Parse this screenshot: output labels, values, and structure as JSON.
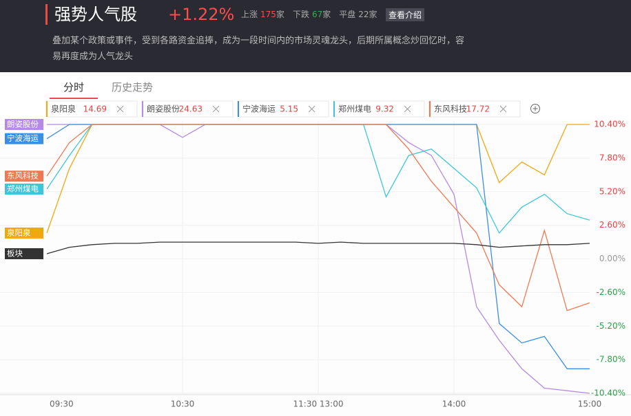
{
  "header": {
    "title": "强势人气股",
    "change": "+1.22%",
    "stats": [
      {
        "label": "上涨",
        "count": "175",
        "unit": "家"
      },
      {
        "label": "下跌",
        "count": "67",
        "unit": "家"
      },
      {
        "label": "平盘",
        "count": "22",
        "unit": "家"
      }
    ],
    "button": "查看介绍",
    "description": "叠加某个政策或事件，受到各路资金追捧，成为一段时间内的市场灵魂龙头，后期所属概念炒回忆时，容易再度成为人气龙头"
  },
  "tabs": [
    "分时",
    "历史走势"
  ],
  "chart_data": {
    "type": "line",
    "x": [
      0,
      10,
      20,
      30,
      40,
      50,
      60,
      70,
      80,
      90,
      100,
      110,
      120,
      130,
      140,
      150,
      160,
      170,
      180,
      190,
      200,
      210,
      220,
      230,
      240
    ],
    "xlim": [
      0,
      240
    ],
    "xticks": [
      {
        "value": 0,
        "label": "09:30"
      },
      {
        "value": 60,
        "label": "10:30"
      },
      {
        "value": 120,
        "label": "11:30 13:00"
      },
      {
        "value": 180,
        "label": "14:00"
      },
      {
        "value": 240,
        "label": "15:00"
      }
    ],
    "ylim": [
      -10.4,
      10.4
    ],
    "yticks": [
      {
        "value": 10.4,
        "label": "10.40%"
      },
      {
        "value": 7.8,
        "label": "7.80%"
      },
      {
        "value": 5.2,
        "label": "5.20%"
      },
      {
        "value": 2.6,
        "label": "2.60%"
      },
      {
        "value": 0,
        "label": "0.00%"
      },
      {
        "value": -2.6,
        "label": "-2.60%"
      },
      {
        "value": -5.2,
        "label": "-5.20%"
      },
      {
        "value": -7.8,
        "label": "-7.80%"
      },
      {
        "value": -10.4,
        "label": "-10.40%"
      }
    ],
    "grid": true,
    "series": [
      {
        "name": "泉阳泉",
        "price": "14.69",
        "color": "#f0a810",
        "values": [
          2,
          7,
          10.4,
          10.4,
          10.4,
          10.4,
          10.4,
          10.4,
          10.4,
          10.4,
          10.4,
          10.4,
          10.4,
          10.4,
          10.4,
          10.4,
          10.4,
          10.4,
          10.4,
          10.4,
          5.9,
          7.5,
          6.5,
          10.4,
          10.4
        ]
      },
      {
        "name": "朗姿股份",
        "price": "24.63",
        "color": "#b48ae6",
        "values": [
          10.4,
          10.4,
          10.4,
          10.4,
          10.4,
          10.4,
          9.4,
          10.4,
          10.4,
          10.4,
          10.4,
          10.4,
          10.4,
          10.4,
          10.4,
          10.4,
          9,
          8,
          5,
          -3.7,
          -6.3,
          -8.5,
          -10,
          -10.2,
          -10.4
        ]
      },
      {
        "name": "宁波海运",
        "price": "5.15",
        "color": "#3a8ee6",
        "values": [
          9.3,
          10.4,
          10.4,
          10.4,
          10.4,
          10.4,
          10.4,
          10.4,
          10.4,
          10.4,
          10.4,
          10.4,
          10.4,
          10.4,
          10.4,
          10.4,
          10.4,
          10.4,
          10.4,
          10.4,
          -5,
          -6.5,
          -6,
          -8.5,
          -8.5
        ]
      },
      {
        "name": "郑州煤电",
        "price": "9.32",
        "color": "#3cc6dc",
        "values": [
          5.4,
          8,
          10.4,
          10.4,
          10.4,
          10.4,
          10.4,
          10.4,
          10.4,
          10.4,
          10.4,
          10.4,
          10.4,
          10.4,
          10.4,
          4.8,
          8,
          8.5,
          7,
          5.5,
          2,
          4,
          5,
          3.5,
          3
        ]
      },
      {
        "name": "东风科技",
        "price": "17.72",
        "color": "#f07850",
        "values": [
          6.4,
          9,
          10.4,
          10.4,
          10.4,
          10.4,
          10.4,
          10.4,
          10.4,
          10.4,
          10.4,
          10.4,
          10.4,
          10.4,
          10.4,
          10.4,
          8.5,
          6,
          4,
          2,
          -2,
          -3.7,
          2.2,
          -4,
          -3.4
        ]
      },
      {
        "name": "板块",
        "color": "#333333",
        "values": [
          0.4,
          0.9,
          1.1,
          1.2,
          1.2,
          1.3,
          1.3,
          1.3,
          1.3,
          1.3,
          1.3,
          1.3,
          1.2,
          1.3,
          1.2,
          1.2,
          1.2,
          1.2,
          1.2,
          1.1,
          0.9,
          1,
          1.1,
          1.1,
          1.2
        ]
      }
    ]
  }
}
